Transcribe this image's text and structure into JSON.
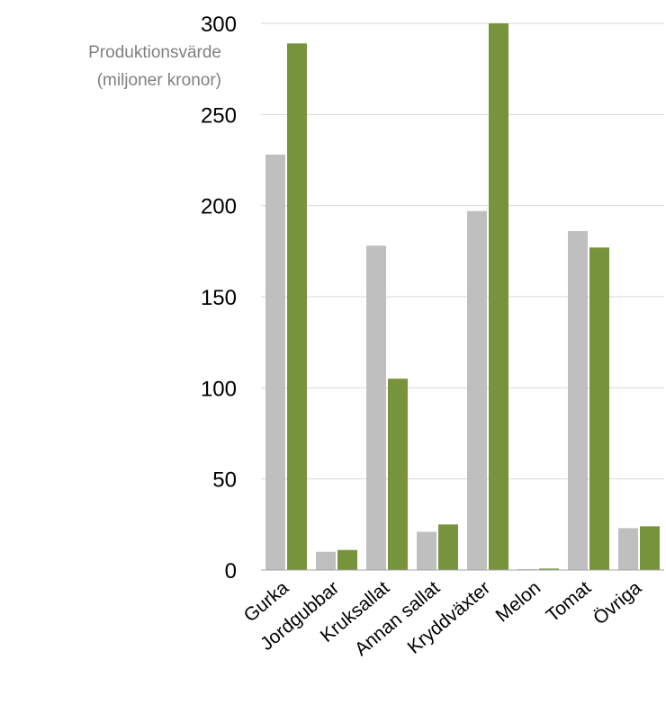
{
  "chart_data": {
    "type": "bar",
    "title": "",
    "xlabel": "",
    "ylabel_lines": [
      "Produktionsvärde",
      "(miljoner kronor)"
    ],
    "categories": [
      "Gurka",
      "Jordgubbar",
      "Kruksallat",
      "Annan sallat",
      "Kryddväxter",
      "Melon",
      "Tomat",
      "Övriga"
    ],
    "series": [
      {
        "values": [
          228,
          10,
          178,
          21,
          197,
          0.5,
          186,
          23
        ],
        "color": "#bfbfbf"
      },
      {
        "values": [
          289,
          11,
          105,
          25,
          300,
          0.8,
          177,
          24
        ],
        "color": "#77933c"
      }
    ],
    "ylim": [
      0,
      300
    ],
    "yticks": [
      0,
      50,
      100,
      150,
      200,
      250,
      300
    ],
    "grid": true,
    "legend": "none"
  }
}
